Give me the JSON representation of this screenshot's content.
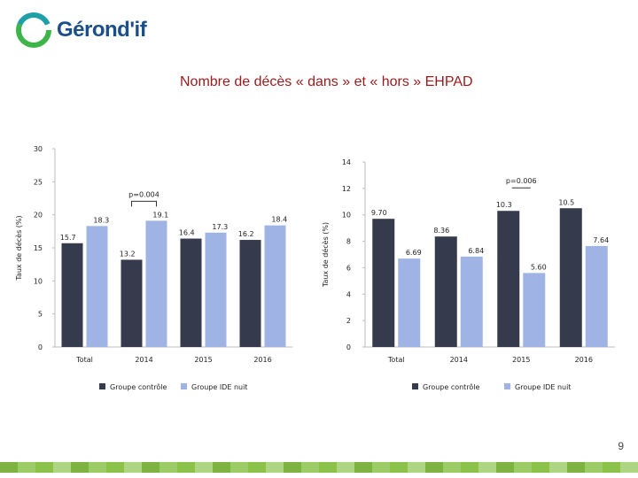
{
  "brand": {
    "name": "Gérond'if",
    "colors": {
      "blue": "#1b4f8a",
      "green": "#3db54a",
      "teal": "#1fa0a8"
    }
  },
  "slide": {
    "title": "Nombre de décès « dans » et « hors » EHPAD",
    "page_number": "9"
  },
  "colors": {
    "series_dark": "#353a4c",
    "series_light": "#9fb3e4",
    "axis": "#bdbdbd",
    "label": "#222222",
    "footer": [
      "#7cb342",
      "#9ccc65",
      "#8bc34a",
      "#aed581"
    ]
  },
  "chart_data": [
    {
      "type": "bar",
      "ylabel": "Taux de décès (%)",
      "ylim": [
        0,
        30
      ],
      "yticks": [
        "0",
        "5",
        "10",
        "15",
        "20",
        "25",
        "30"
      ],
      "yticks_values": [
        0,
        5,
        10,
        15,
        20,
        25,
        30
      ],
      "categories": [
        "Total",
        "2014",
        "2015",
        "2016"
      ],
      "series": [
        {
          "name": "Groupe contrôle",
          "values": [
            15.7,
            13.2,
            16.4,
            16.2
          ],
          "labels": [
            "15.7",
            "13.2",
            "16.4",
            "16.2"
          ]
        },
        {
          "name": "Groupe IDE nuit",
          "values": [
            18.3,
            19.1,
            17.3,
            18.4
          ],
          "labels": [
            "18.3",
            "19.1",
            "17.3",
            "18.4"
          ]
        }
      ],
      "annotation": {
        "text": "p=0.004",
        "category_index": 1
      },
      "legend": "bottom"
    },
    {
      "type": "bar",
      "ylabel": "Taux de décès (%)",
      "ylim": [
        0,
        14
      ],
      "yticks": [
        "0",
        "2",
        "4",
        "6",
        "8",
        "10",
        "12",
        "14"
      ],
      "yticks_values": [
        0,
        2,
        4,
        6,
        8,
        10,
        12,
        14
      ],
      "categories": [
        "Total",
        "2014",
        "2015",
        "2016"
      ],
      "series": [
        {
          "name": "Groupe contrôle",
          "values": [
            9.7,
            8.36,
            10.3,
            10.5
          ],
          "labels": [
            "9.70",
            "8.36",
            "10.3",
            "10.5"
          ]
        },
        {
          "name": "Groupe IDE nuit",
          "values": [
            6.69,
            6.84,
            5.6,
            7.64
          ],
          "labels": [
            "6.69",
            "6.84",
            "5.60",
            "7.64"
          ]
        }
      ],
      "annotation": {
        "text": "p=0.006",
        "category_index": 2
      },
      "legend": "bottom"
    }
  ]
}
